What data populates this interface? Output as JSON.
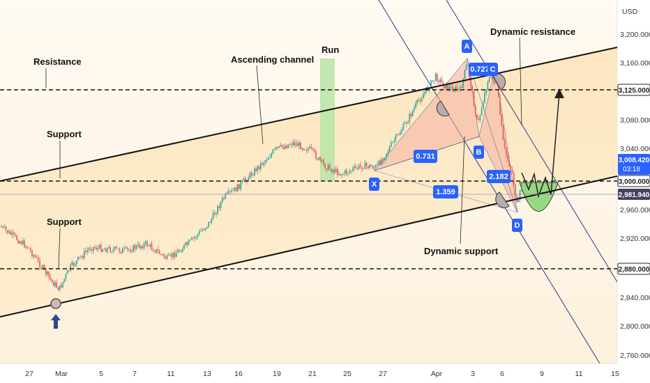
{
  "chart_data": {
    "type": "candlestick",
    "currency": "USD",
    "y_ticks": [
      "3,200.000",
      "3,160.000",
      "3,120.000",
      "3,080.000",
      "3,040.000",
      "3,000.000",
      "2,960.000",
      "2,920.000",
      "2,880.000",
      "2,840.000",
      "2,800.000",
      "2,760.000"
    ],
    "ylim": [
      2750,
      3215
    ],
    "x_ticks": [
      "27",
      "Mar",
      "5",
      "7",
      "11",
      "13",
      "16",
      "19",
      "21",
      "25",
      "27",
      "Apr",
      "3",
      "6",
      "9",
      "11",
      "15"
    ],
    "price_labels": {
      "level_3125": "3,125.000",
      "current": "3,008.420",
      "countdown": "03:18",
      "level_3000": "3,000.000",
      "last": "2,981.940",
      "level_2880": "2,880.000"
    },
    "horizontal_levels": [
      3125,
      3000,
      2880,
      2982
    ],
    "annotations": {
      "resistance": "Resistance",
      "support_upper": "Support",
      "support_lower": "Support",
      "ascending_channel": "Ascending channel",
      "run": "Run",
      "dynamic_resistance": "Dynamic resistance",
      "dynamic_support": "Dynamic support"
    },
    "harmonic_points": [
      "X",
      "A",
      "B",
      "C",
      "D"
    ],
    "ratios": [
      "0.731",
      "1.359",
      "0.727",
      "2.182"
    ],
    "colors": {
      "up": "#26a69a",
      "down": "#ef5350",
      "label_blue": "#2962ff",
      "channel_fill": "#fde9c4",
      "harmonic_fill": "#f7a8a0",
      "target_fill": "#8bd67a",
      "run_fill": "#b7e4a7",
      "dynamic_line": "#2a3a86"
    }
  }
}
